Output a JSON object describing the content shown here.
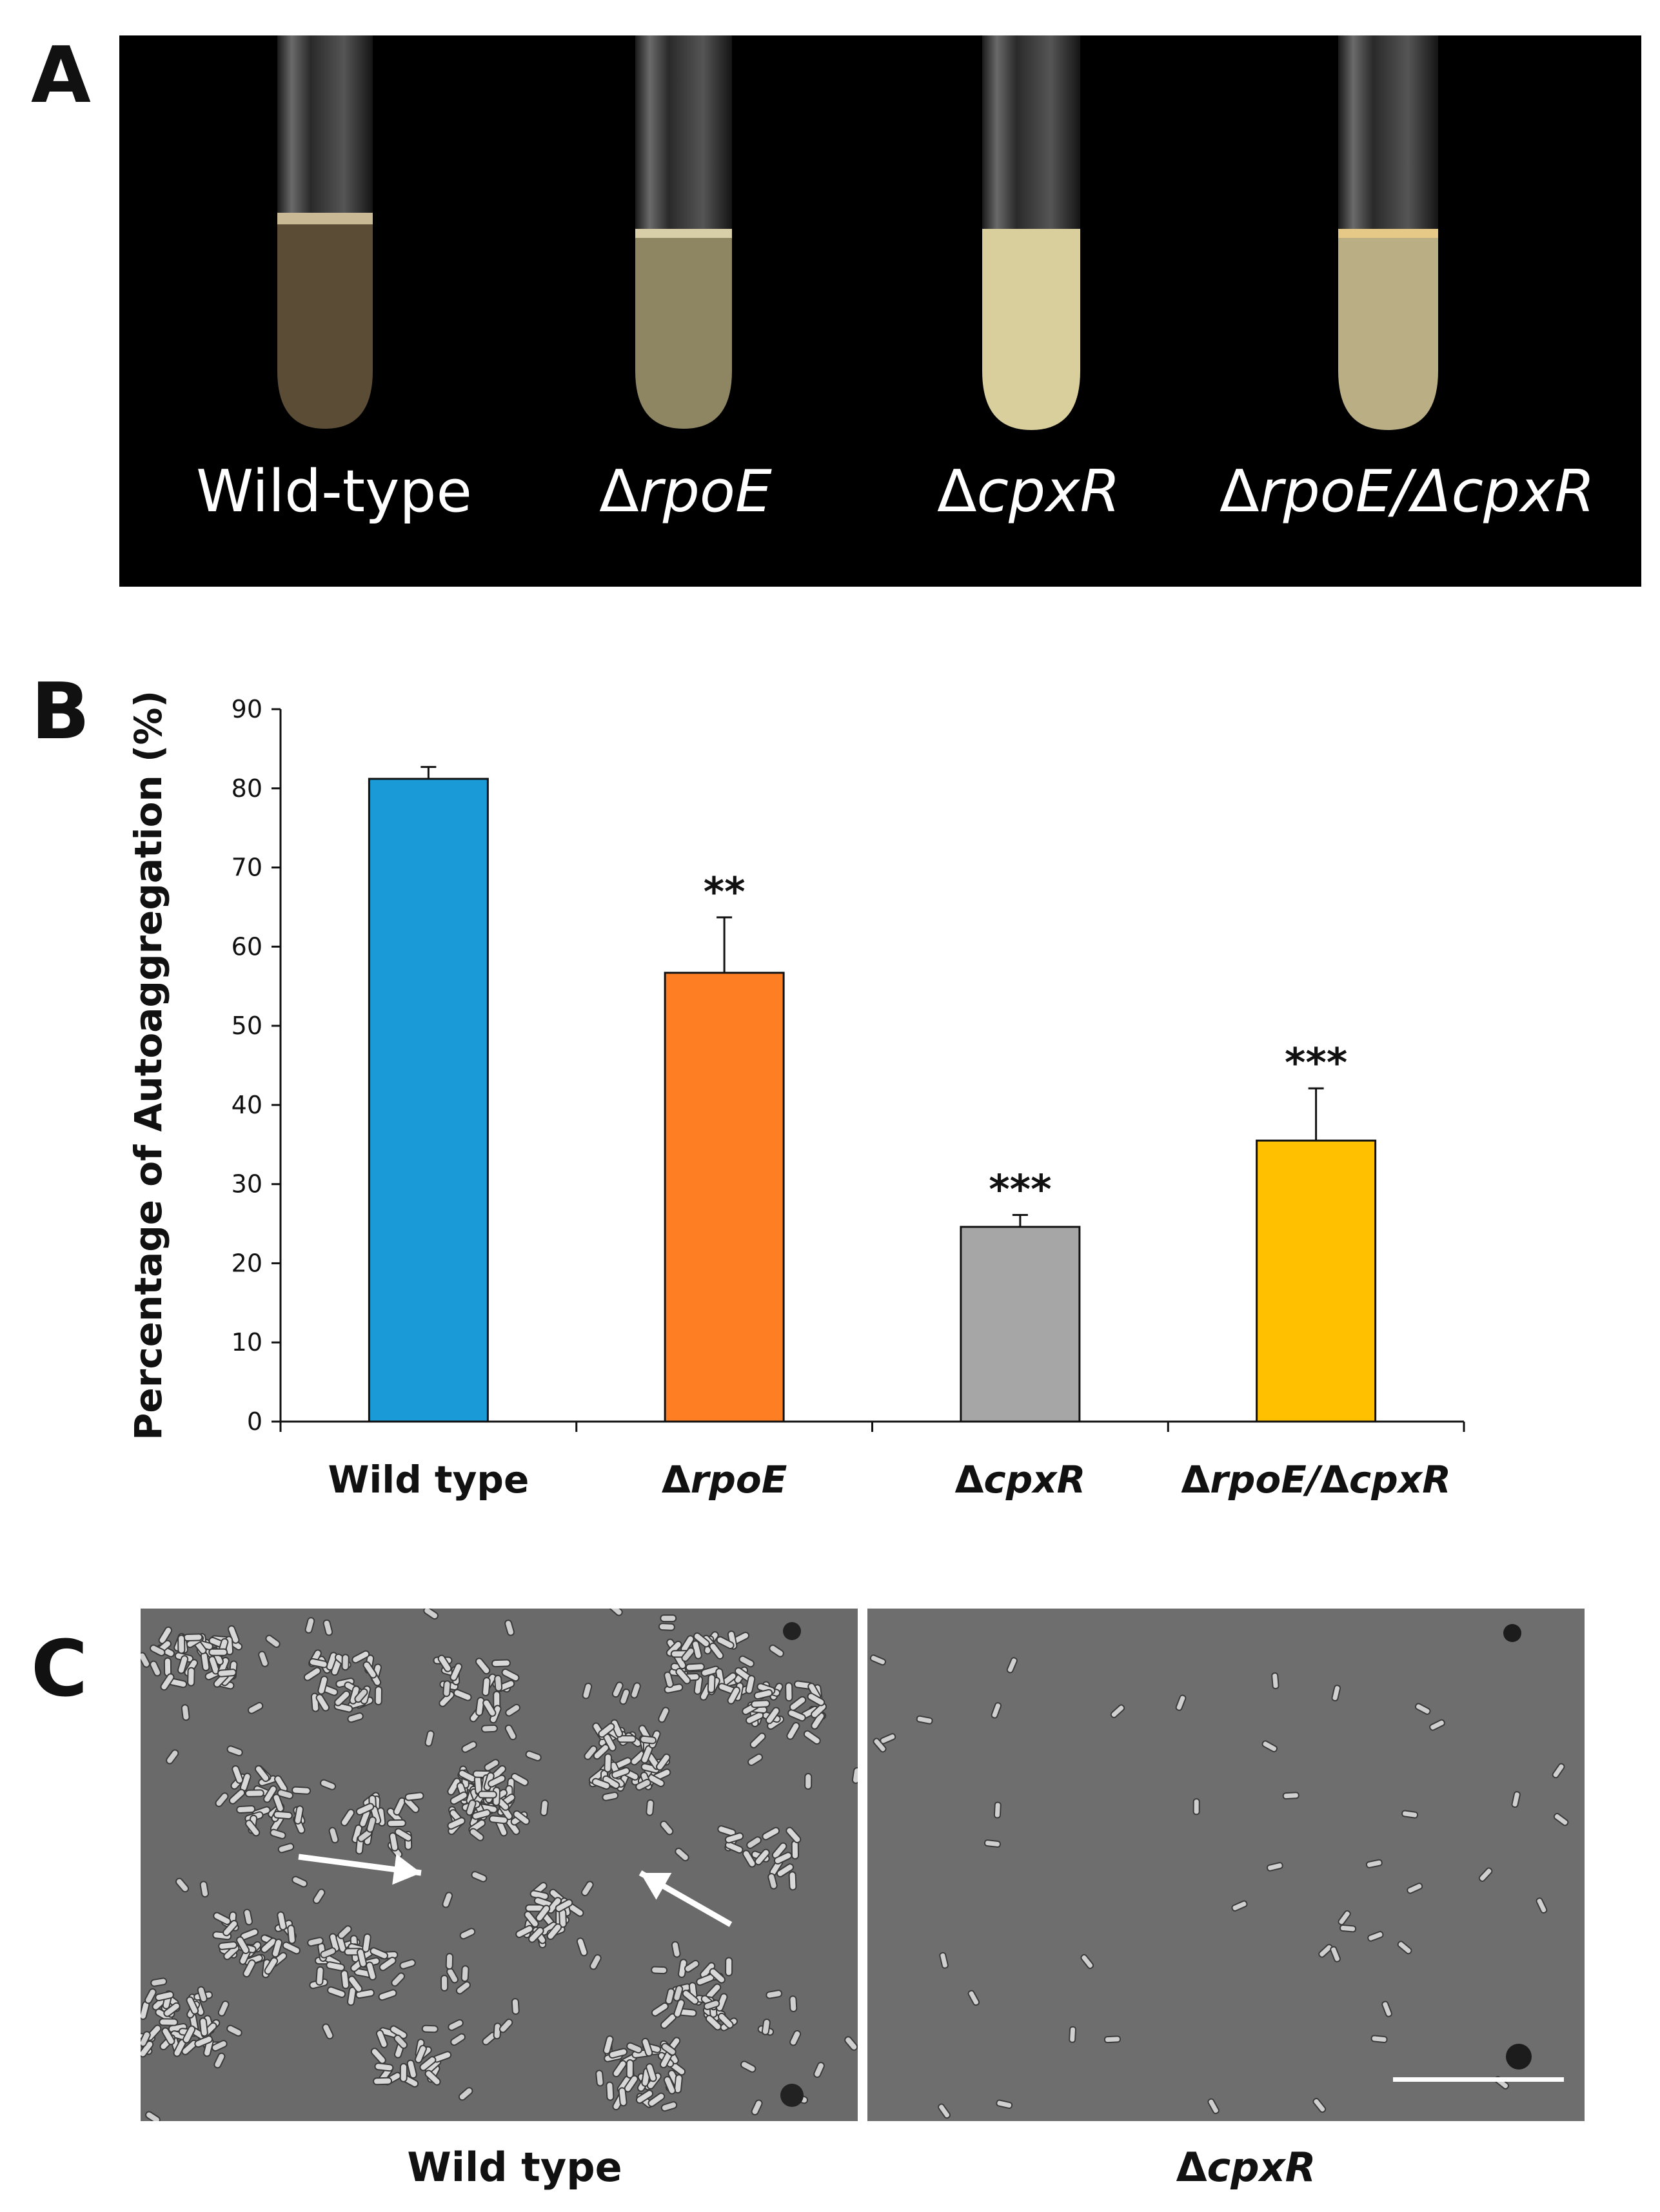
{
  "panels": {
    "a": "A",
    "b": "B",
    "c": "C"
  },
  "tubes": [
    {
      "prefix": "",
      "italic": "Wild-type"
    },
    {
      "prefix": "Δ",
      "italic": "rpoE"
    },
    {
      "prefix": "Δ",
      "italic": "cpxR"
    },
    {
      "prefix": "Δ",
      "italic": "rpoE/ΔcpxR"
    }
  ],
  "chart_data": {
    "type": "bar",
    "ylabel": "Percentage of Autoaggregation (%)",
    "xlabel": "",
    "ylim": [
      0,
      90
    ],
    "yticks": [
      0,
      10,
      20,
      30,
      40,
      50,
      60,
      70,
      80,
      90
    ],
    "categories": [
      "Wild type",
      "ΔrpoE",
      "ΔcpxR",
      "ΔrpoE/ΔcpxR"
    ],
    "values": [
      81.2,
      56.7,
      24.6,
      35.5
    ],
    "errors": [
      1.5,
      7.0,
      1.5,
      6.6
    ],
    "significance": [
      "",
      "**",
      "***",
      "***"
    ],
    "colors": [
      "#1a9ad6",
      "#fe7f23",
      "#a6a6a6",
      "#ffc000"
    ],
    "grid": false,
    "legend": "none"
  },
  "micrographs": [
    {
      "prefix": "",
      "label": "Wild type"
    },
    {
      "prefix": "Δ",
      "label": "cpxR"
    }
  ]
}
